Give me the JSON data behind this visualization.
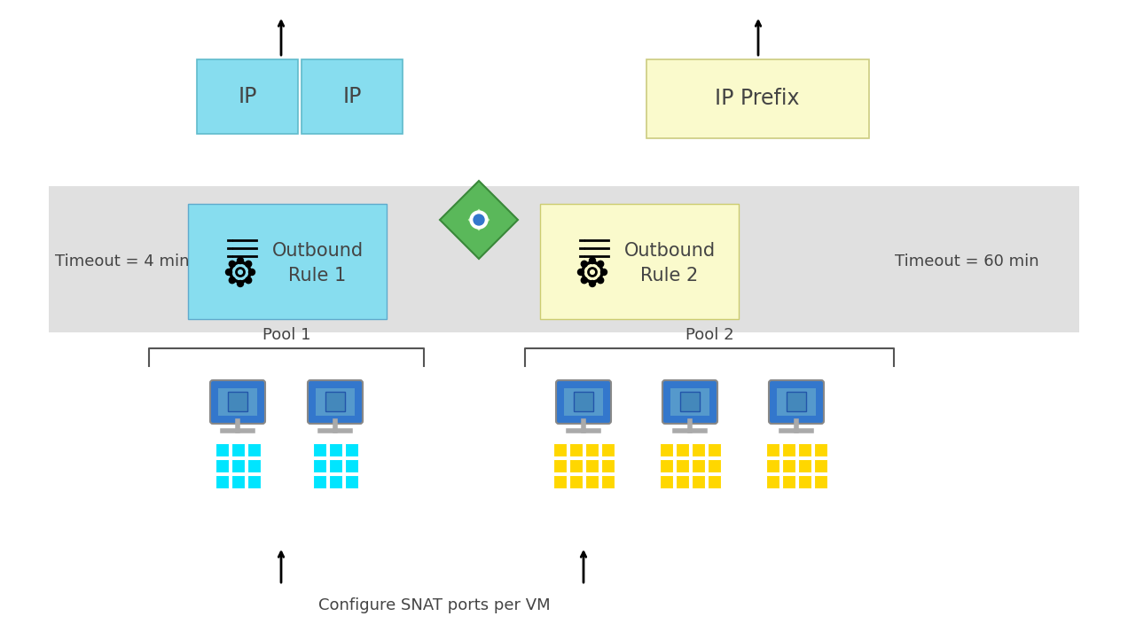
{
  "bg_color": "#ffffff",
  "band_color": "#e0e0e0",
  "ip_box_color": "#87DDEF",
  "ip_box_edge": "#60BBCC",
  "ip_prefix_color": "#FAFACC",
  "ip_prefix_edge": "#CCCC80",
  "rule1_color": "#87DDEF",
  "rule1_edge": "#60AACC",
  "rule2_color": "#FAFACC",
  "rule2_edge": "#CCCC70",
  "cyan_color": "#00E5FF",
  "yellow_color": "#FFD700",
  "vm_blue": "#3377CC",
  "vm_screen": "#5599CC",
  "vm_stand": "#AAAAAA",
  "green_diamond": "#5AB85A",
  "green_diamond_edge": "#3A883A",
  "green_arrow": "#AAEEA0",
  "blue_dot": "#3377CC",
  "timeout1": "Timeout = 4 min",
  "timeout2": "Timeout = 60 min",
  "rule1_text": "Outbound\nRule 1",
  "rule2_text": "Outbound\nRule 2",
  "ip1_text": "IP",
  "ip2_text": "IP",
  "ip_prefix_text": "IP Prefix",
  "pool1_text": "Pool 1",
  "pool2_text": "Pool 2",
  "bottom_label": "Configure SNAT ports per VM",
  "text_color": "#444444",
  "bracket_color": "#555555",
  "arrow_color": "black"
}
